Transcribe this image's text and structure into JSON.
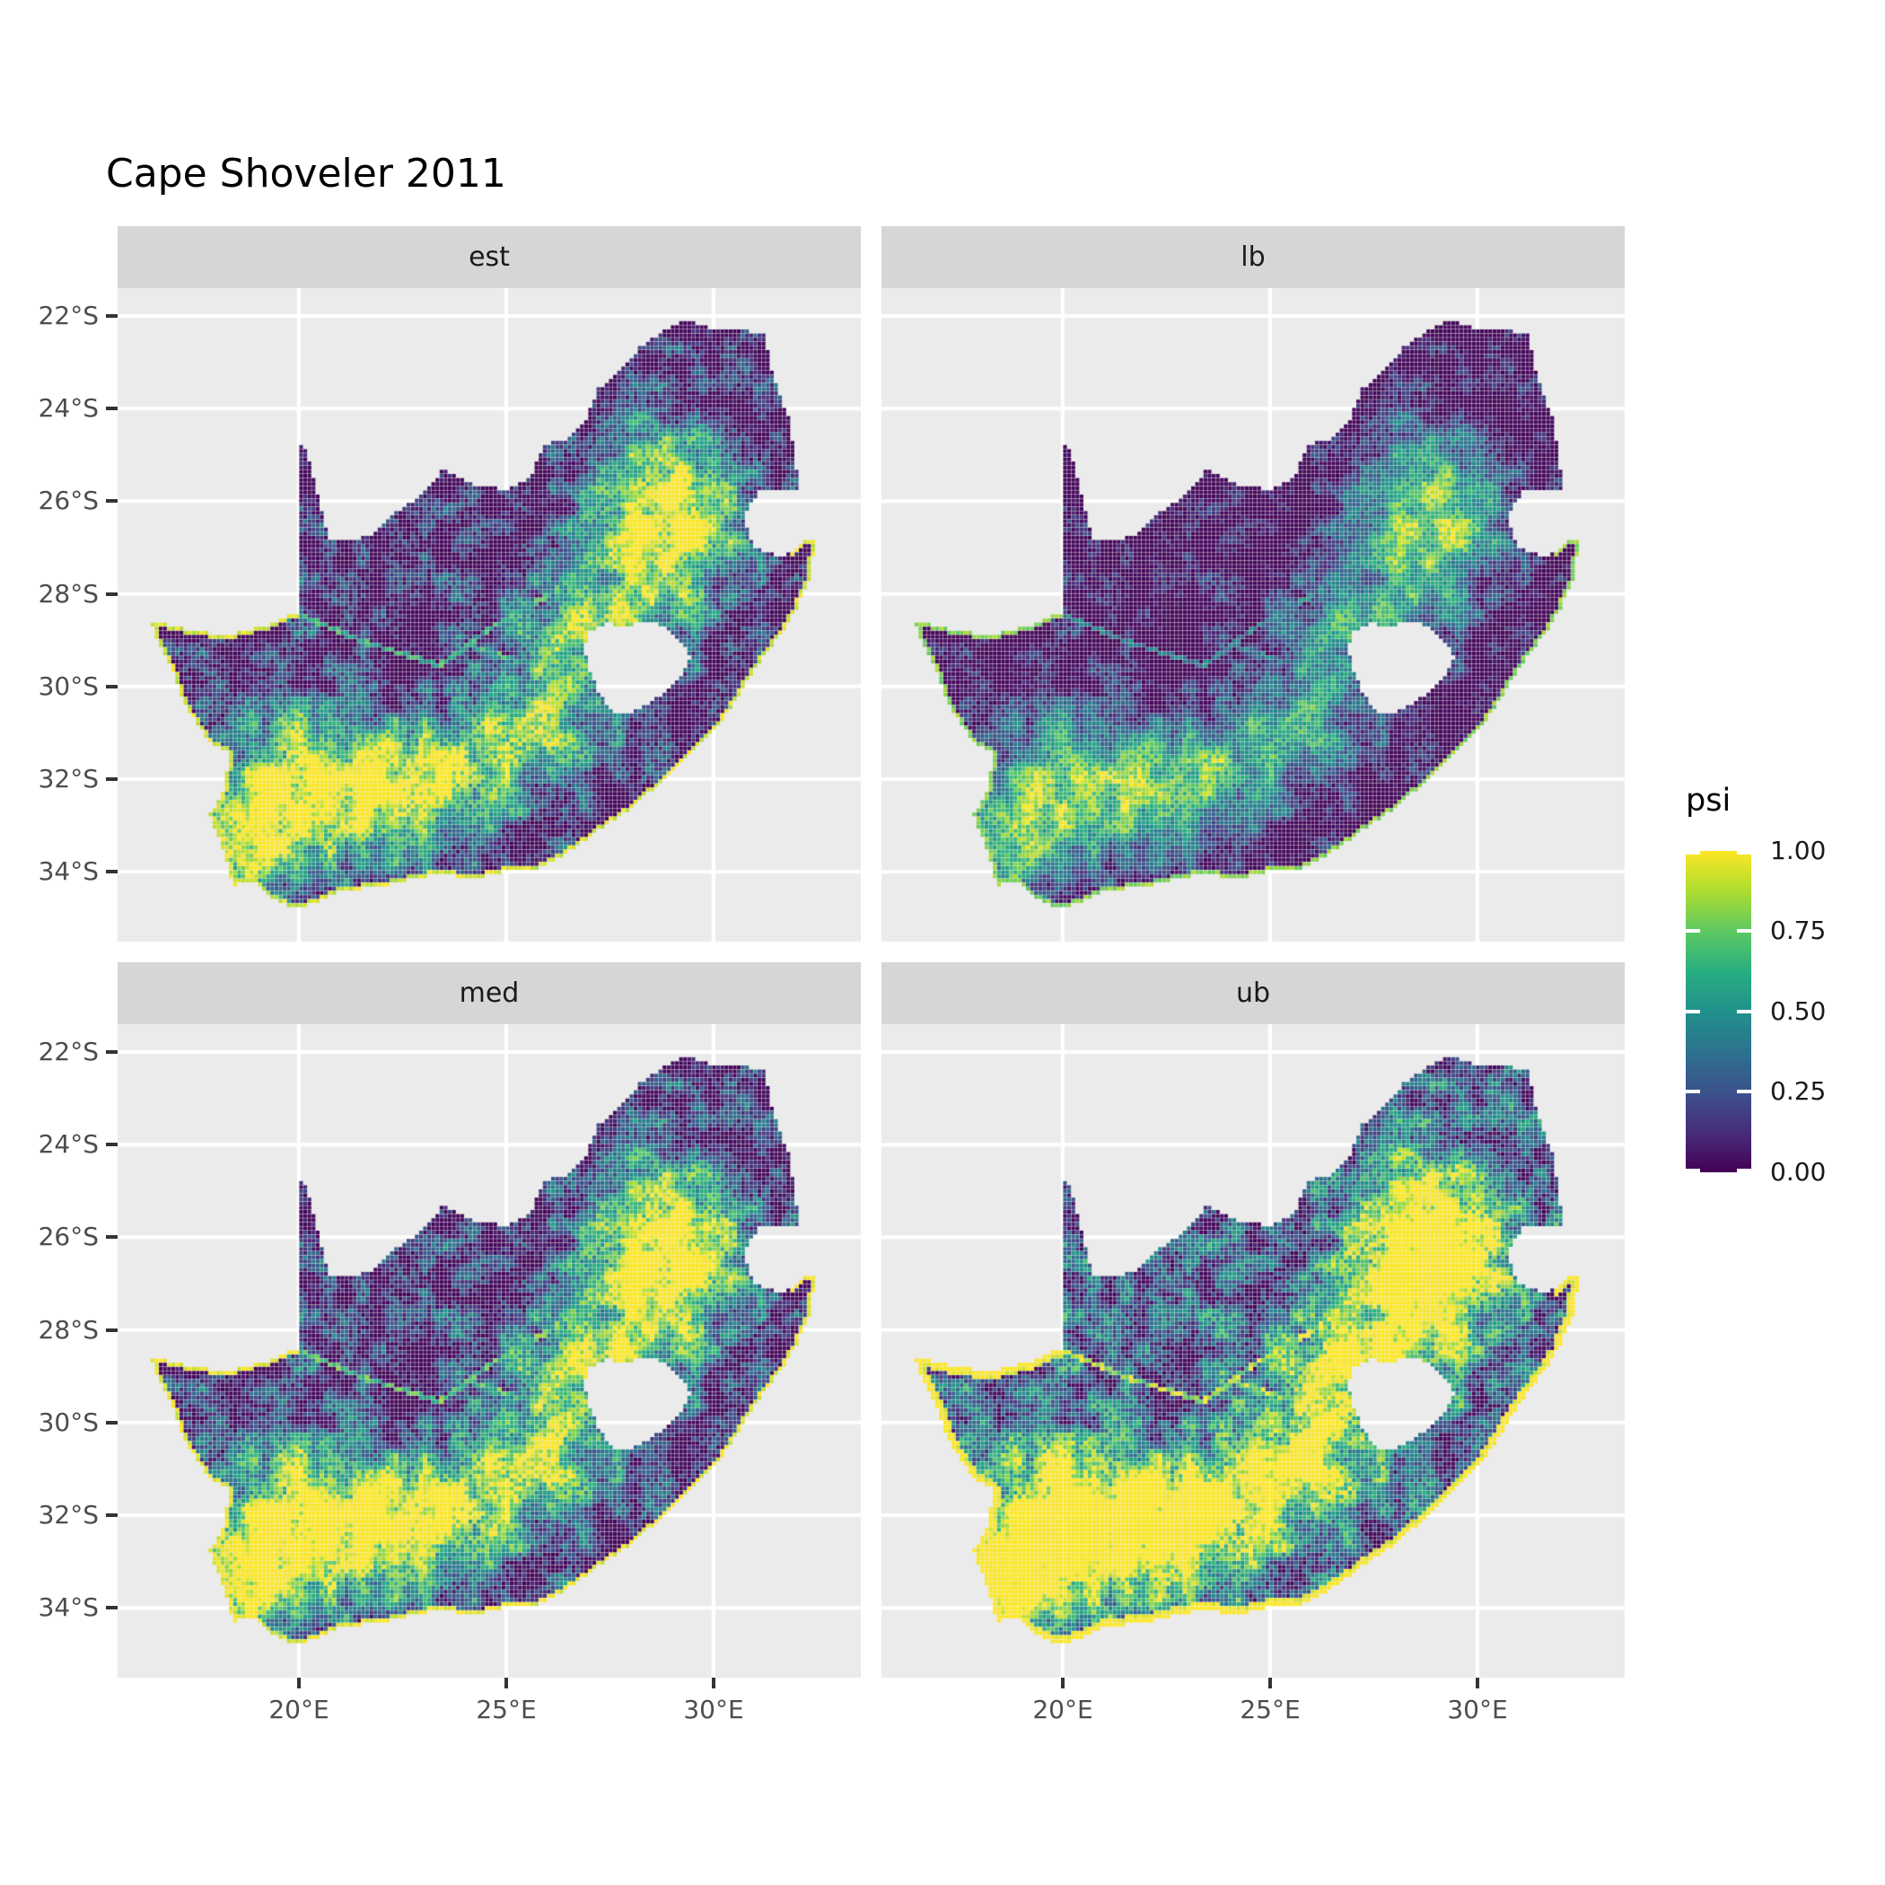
{
  "chart_data": {
    "type": "heatmap",
    "title": "Cape Shoveler 2011",
    "region": "South Africa occupancy raster, faceted by estimate type",
    "facet_labels": [
      "est",
      "lb",
      "med",
      "ub"
    ],
    "x_ticks": [
      "20°E",
      "25°E",
      "30°E"
    ],
    "x_tick_values": [
      20,
      25,
      30
    ],
    "y_ticks": [
      "22°S",
      "24°S",
      "26°S",
      "28°S",
      "30°S",
      "32°S",
      "34°S"
    ],
    "y_tick_values": [
      -22,
      -24,
      -26,
      -28,
      -30,
      -32,
      -34
    ],
    "lon_range": [
      15.63,
      33.55
    ],
    "lat_range": [
      -35.51,
      -21.4
    ],
    "grid": "major only, white on grey panel",
    "legend": {
      "title": "psi",
      "labels": [
        "1.00",
        "0.75",
        "0.50",
        "0.25",
        "0.00"
      ],
      "values": [
        1.0,
        0.75,
        0.5,
        0.25,
        0.0
      ],
      "range": [
        0,
        1
      ],
      "position": "right",
      "palette": [
        "#440154",
        "#472d7b",
        "#3b528b",
        "#2c728e",
        "#21918c",
        "#28ae80",
        "#5ec962",
        "#addc30",
        "#fde725"
      ]
    },
    "render": {
      "facet_params": [
        {
          "label": "est",
          "gain": 1.0,
          "offset": 0.0,
          "rim": 0.86,
          "rim_width": 1
        },
        {
          "label": "lb",
          "gain": 0.8,
          "offset": -0.07,
          "rim": 0.74,
          "rim_width": 1
        },
        {
          "label": "med",
          "gain": 1.05,
          "offset": 0.05,
          "rim": 0.9,
          "rim_width": 1
        },
        {
          "label": "ub",
          "gain": 1.13,
          "offset": 0.18,
          "rim": 0.98,
          "rim_width": 2
        }
      ]
    },
    "colors": {
      "panel_bg": "#EBEBEB",
      "strip_bg": "#D6D6D6",
      "grid_line": "#FFFFFF",
      "axis_text": "#4D4D4D",
      "tick_mark": "#333333",
      "title_text": "#000000",
      "strip_text": "#1A1A1A",
      "background": "#FFFFFF"
    }
  }
}
